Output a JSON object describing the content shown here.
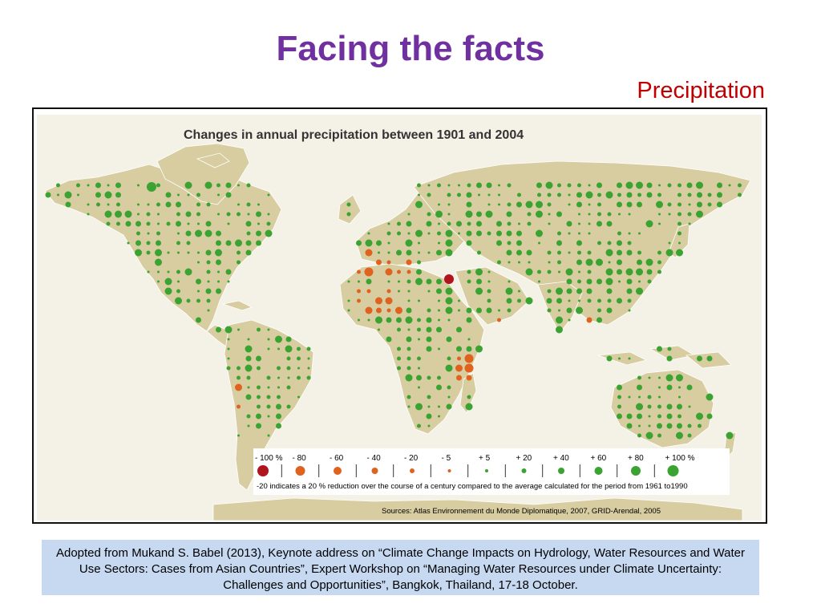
{
  "slide": {
    "title": "Facing the facts",
    "subtitle": "Precipitation"
  },
  "map": {
    "title": "Changes in annual precipitation between 1901 and 2004",
    "source": "Sources: Atlas Environnement du Monde Diplomatique, 2007, GRID-Arendal, 2005",
    "colors": {
      "ocean": "#f4f1e6",
      "land": "#d8cda0",
      "decrease": "#e0621f",
      "decrease_max": "#b0141c",
      "increase": "#3aa332"
    },
    "legend": {
      "items": [
        {
          "label": "- 100 %",
          "kind": "decrease_max"
        },
        {
          "label": "- 80",
          "kind": "decrease"
        },
        {
          "label": "- 60",
          "kind": "decrease"
        },
        {
          "label": "- 40",
          "kind": "decrease"
        },
        {
          "label": "- 20",
          "kind": "decrease"
        },
        {
          "label": "- 5",
          "kind": "decrease"
        },
        {
          "label": "+ 5",
          "kind": "increase"
        },
        {
          "label": "+ 20",
          "kind": "increase"
        },
        {
          "label": "+ 40",
          "kind": "increase"
        },
        {
          "label": "+ 60",
          "kind": "increase"
        },
        {
          "label": "+ 80",
          "kind": "increase"
        },
        {
          "label": "+ 100 %",
          "kind": "increase"
        }
      ],
      "note": "-20 indicates a 20 % reduction over the course of a century compared to the average calculated for the period from 1961 to1990"
    }
  },
  "caption": {
    "text": "Adopted from Mukand S. Babel (2013), Keynote address on “Climate Change Impacts on Hydrology, Water Resources and Water Use Sectors: Cases from Asian Countries”, Expert Workshop on “Managing Water Resources under Climate Uncertainty: Challenges and Opportunities”, Bangkok, Thailand, 17-18 October."
  }
}
